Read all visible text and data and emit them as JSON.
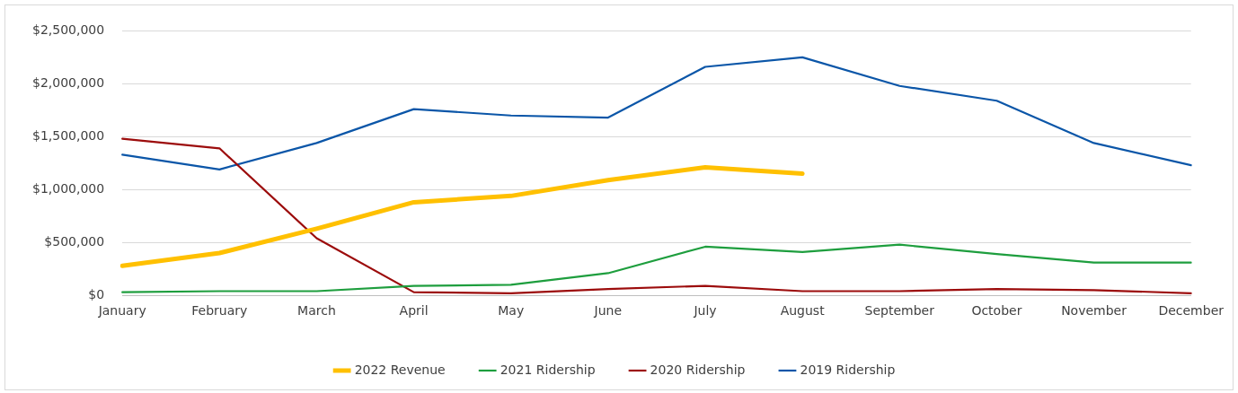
{
  "chart_data": {
    "type": "line",
    "categories": [
      "January",
      "February",
      "March",
      "April",
      "May",
      "June",
      "July",
      "August",
      "September",
      "October",
      "November",
      "December"
    ],
    "series": [
      {
        "name": "2022 Revenue",
        "color": "#ffc000",
        "values": [
          280000,
          400000,
          630000,
          880000,
          940000,
          1090000,
          1210000,
          1150000,
          null,
          null,
          null,
          null
        ]
      },
      {
        "name": "2021 Ridership",
        "color": "#1e9e3e",
        "values": [
          30000,
          40000,
          40000,
          90000,
          100000,
          210000,
          460000,
          410000,
          480000,
          390000,
          310000,
          310000
        ]
      },
      {
        "name": "2020 Ridership",
        "color": "#9c0c0c",
        "values": [
          1480000,
          1390000,
          540000,
          30000,
          20000,
          60000,
          90000,
          40000,
          40000,
          60000,
          50000,
          20000
        ]
      },
      {
        "name": "2019 Ridership",
        "color": "#0b56a8",
        "values": [
          1330000,
          1190000,
          1440000,
          1760000,
          1700000,
          1680000,
          2160000,
          2250000,
          1980000,
          1840000,
          1440000,
          1230000
        ]
      }
    ],
    "ylim": [
      0,
      2500000
    ],
    "yticks": [
      {
        "value": 0,
        "label": "$0"
      },
      {
        "value": 500000,
        "label": "$500,000"
      },
      {
        "value": 1000000,
        "label": "$1,000,000"
      },
      {
        "value": 1500000,
        "label": "$1,500,000"
      },
      {
        "value": 2000000,
        "label": "$2,000,000"
      },
      {
        "value": 2500000,
        "label": "$2,500,000"
      }
    ],
    "grid": "y",
    "legend": "bottom",
    "marker": "none",
    "line_style": "solid"
  }
}
